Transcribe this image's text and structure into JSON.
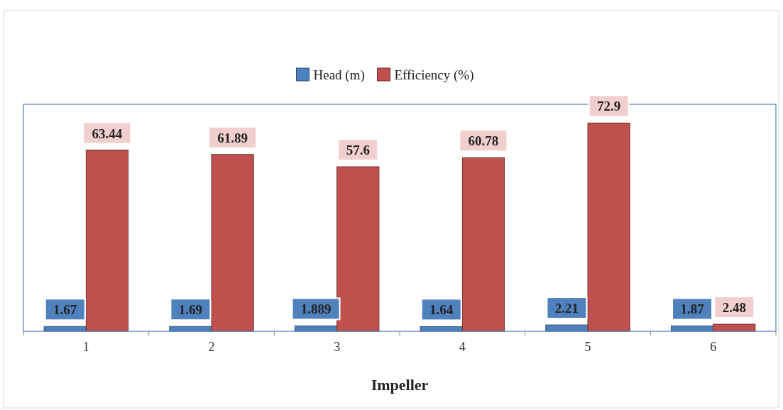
{
  "chart_data": {
    "type": "bar",
    "xlabel": "Impeller",
    "categories": [
      "1",
      "2",
      "3",
      "4",
      "5",
      "6"
    ],
    "series": [
      {
        "name": "Head (m)",
        "color": "#4f81bd",
        "values": [
          1.67,
          1.69,
          1.889,
          1.64,
          2.21,
          1.87
        ]
      },
      {
        "name": "Efficiency (%)",
        "color": "#c0504d",
        "values": [
          63.44,
          61.89,
          57.6,
          60.78,
          72.9,
          2.48
        ]
      }
    ],
    "data_labels": true,
    "legend": "top",
    "grid": false
  }
}
